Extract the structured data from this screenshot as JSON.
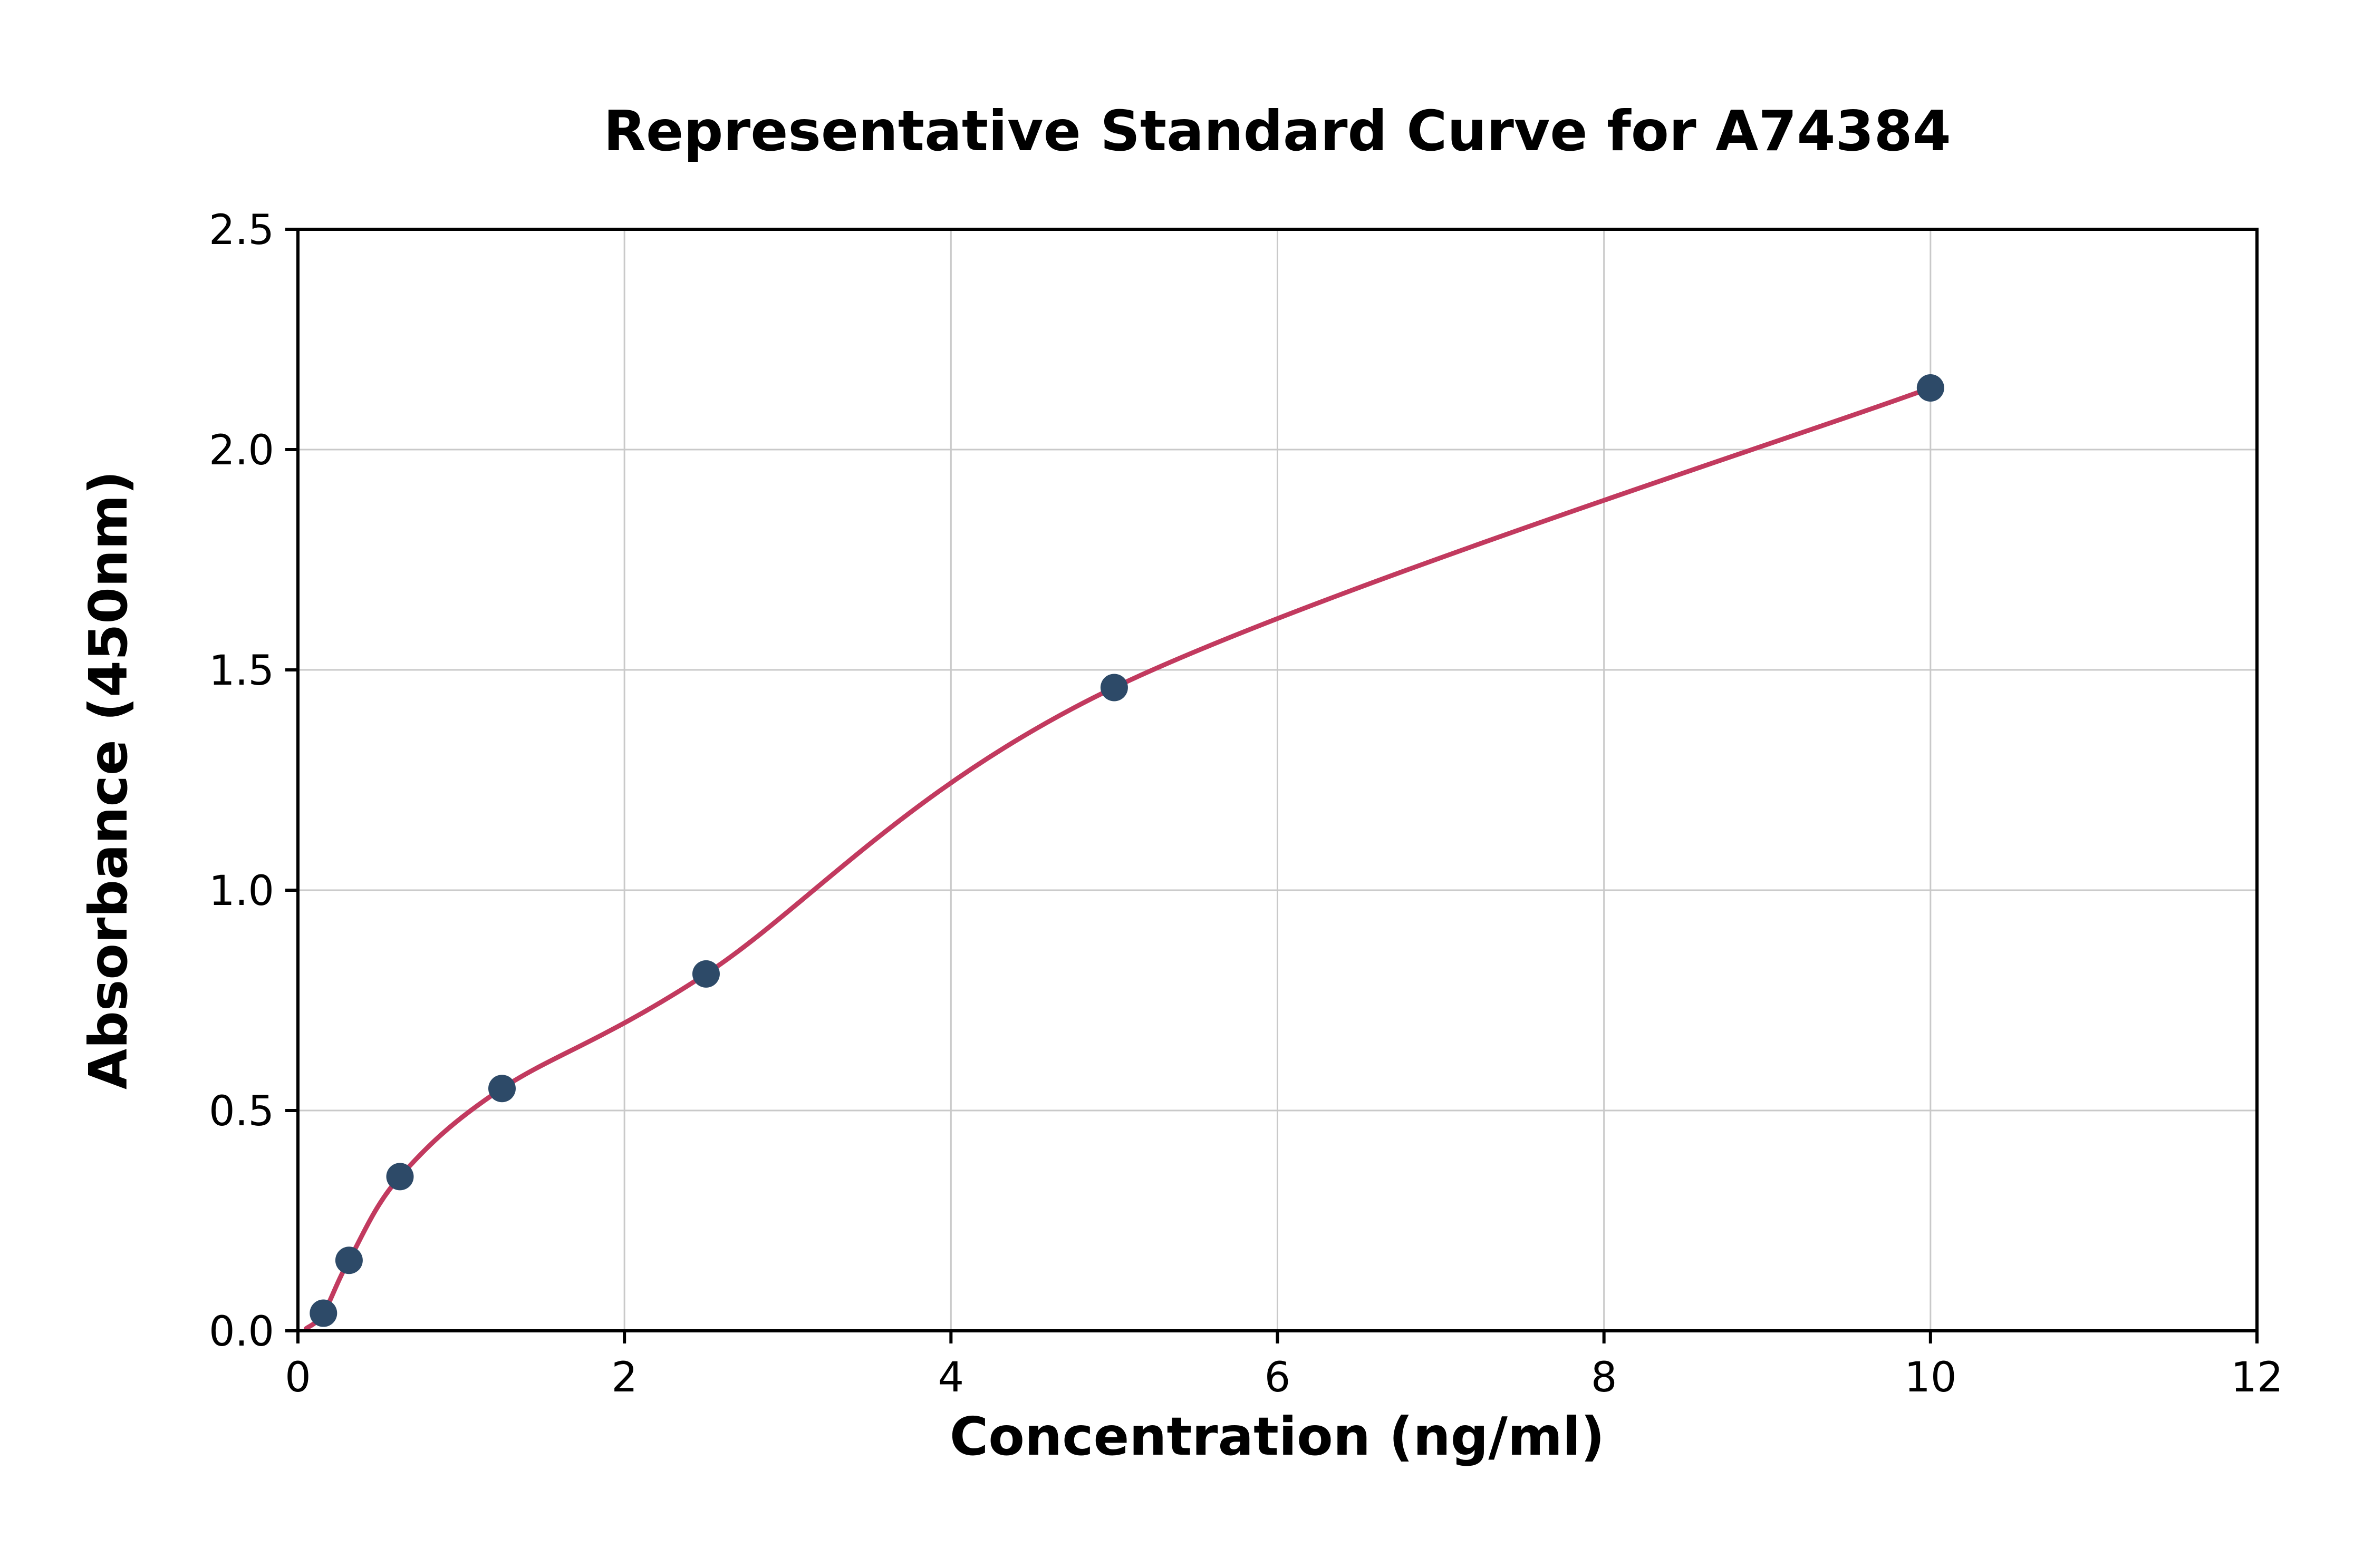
{
  "page": {
    "background": "#ffffff"
  },
  "chart_data": {
    "type": "scatter",
    "title": "Representative Standard Curve for A74384",
    "xlabel": "Concentration (ng/ml)",
    "ylabel": "Absorbance (450nm)",
    "xlim": [
      0,
      12
    ],
    "ylim": [
      0,
      2.5
    ],
    "xticks": [
      0,
      2,
      4,
      6,
      8,
      10,
      12
    ],
    "xtick_labels": [
      "0",
      "2",
      "4",
      "6",
      "8",
      "10",
      "12"
    ],
    "yticks": [
      0,
      0.5,
      1.0,
      1.5,
      2.0,
      2.5
    ],
    "ytick_labels": [
      "0.0",
      "0.5",
      "1.0",
      "1.5",
      "2.0",
      "2.5"
    ],
    "grid": true,
    "legend_position": "none",
    "points": [
      {
        "x": 0.156,
        "y": 0.04
      },
      {
        "x": 0.313,
        "y": 0.16
      },
      {
        "x": 0.625,
        "y": 0.35
      },
      {
        "x": 1.25,
        "y": 0.55
      },
      {
        "x": 2.5,
        "y": 0.81
      },
      {
        "x": 5,
        "y": 1.46
      },
      {
        "x": 10,
        "y": 2.14
      }
    ],
    "fit_curve_start": {
      "x": 0.05,
      "y": 0.005
    },
    "colors": {
      "curve": "#c23a5f",
      "points": "#2d4a68",
      "grid": "#c9c9c9",
      "axis": "#000000",
      "text": "#000000"
    }
  }
}
